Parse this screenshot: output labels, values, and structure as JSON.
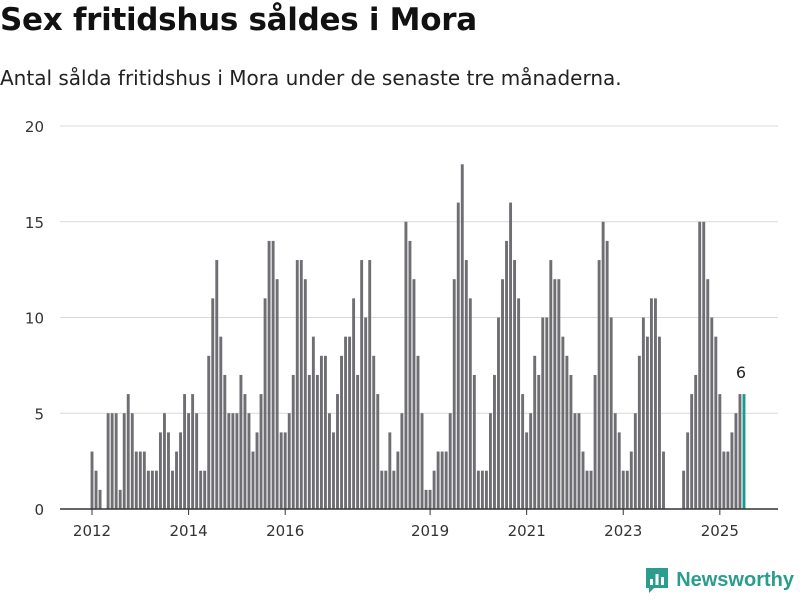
{
  "header": {
    "title": "Sex fritidshus såldes i Mora",
    "subtitle": "Antal sålda fritidshus i Mora under de senaste tre månaderna."
  },
  "brand": {
    "name": "Newsworthy",
    "logo_icon": "bar-chart-speech-bubble-icon",
    "color": "#2a9d8f"
  },
  "colors": {
    "bar": "#6e6e73",
    "highlight": "#1a9a94",
    "grid": "#d9d9d9",
    "axis": "#333333"
  },
  "chart_data": {
    "type": "bar",
    "title": "Sex fritidshus såldes i Mora",
    "subtitle": "Antal sålda fritidshus i Mora under de senaste tre månaderna.",
    "xlabel": "",
    "ylabel": "",
    "ylim": [
      0,
      20
    ],
    "yticks": [
      0,
      5,
      10,
      15,
      20
    ],
    "x_tick_labels": [
      "2012",
      "2014",
      "2016",
      "2019",
      "2021",
      "2023",
      "2025"
    ],
    "x_tick_dates": [
      "2012-01",
      "2014-01",
      "2016-01",
      "2019-01",
      "2021-01",
      "2023-01",
      "2025-01"
    ],
    "grid": true,
    "x_start": "2012-01",
    "frequency": "monthly",
    "values": [
      3,
      2,
      1,
      0,
      5,
      5,
      5,
      1,
      5,
      6,
      5,
      3,
      3,
      3,
      2,
      2,
      2,
      4,
      5,
      4,
      2,
      3,
      4,
      6,
      5,
      6,
      5,
      2,
      2,
      8,
      11,
      13,
      9,
      7,
      5,
      5,
      5,
      7,
      6,
      5,
      3,
      4,
      6,
      11,
      14,
      14,
      12,
      4,
      4,
      5,
      7,
      13,
      13,
      12,
      7,
      9,
      7,
      8,
      8,
      5,
      4,
      6,
      8,
      9,
      9,
      11,
      7,
      13,
      10,
      13,
      8,
      6,
      2,
      2,
      4,
      2,
      3,
      5,
      15,
      14,
      12,
      8,
      5,
      1,
      1,
      2,
      3,
      3,
      3,
      5,
      12,
      16,
      18,
      13,
      11,
      7,
      2,
      2,
      2,
      5,
      7,
      10,
      12,
      14,
      16,
      13,
      11,
      6,
      4,
      5,
      8,
      7,
      10,
      10,
      13,
      12,
      12,
      9,
      8,
      7,
      5,
      5,
      3,
      2,
      2,
      7,
      13,
      15,
      14,
      10,
      5,
      4,
      2,
      2,
      3,
      5,
      8,
      10,
      9,
      11,
      11,
      9,
      3,
      0,
      0,
      0,
      0,
      2,
      4,
      6,
      7,
      15,
      15,
      12,
      10,
      9,
      6,
      3,
      3,
      4,
      5,
      6,
      6
    ],
    "highlight": {
      "index": 162,
      "label": "6"
    }
  }
}
